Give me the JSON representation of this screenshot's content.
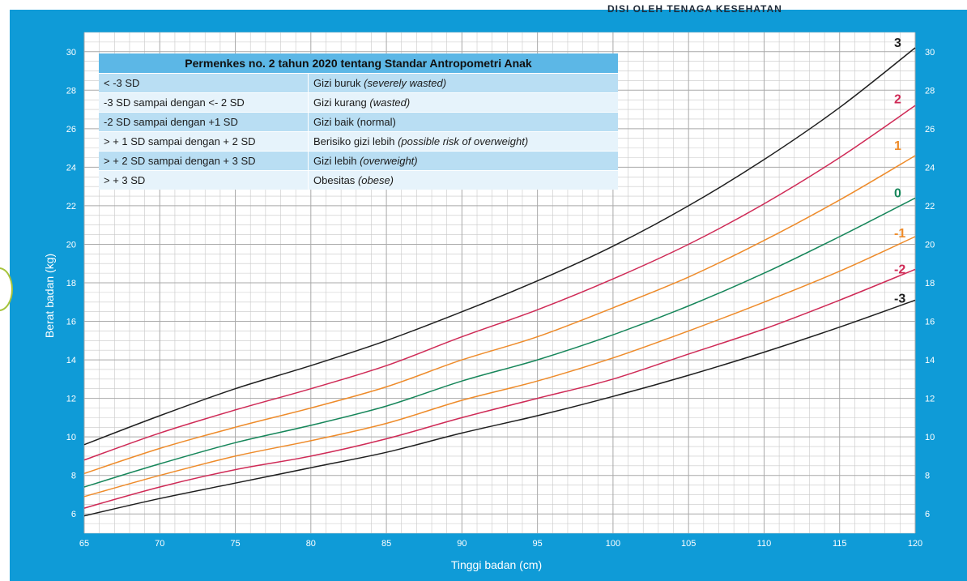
{
  "header_text": "DISI OLEH TENAGA KESEHATAN",
  "colors": {
    "frame": "#0f9bd7",
    "plot_bg": "#ffffff",
    "grid": "#c8c8c8",
    "sd3": "#1e1e1e",
    "sd2": "#cf2a56",
    "sd1": "#ee8b2a",
    "sd0": "#16865a",
    "table_header": "#5cb7e6",
    "table_row_dark": "#b9def3",
    "table_row_light": "#e6f3fb"
  },
  "legend_table": {
    "title": "Permenkes no. 2 tahun 2020 tentang Standar Antropometri Anak",
    "rows": [
      {
        "range": "< -3 SD",
        "status": "Gizi buruk",
        "status_en": "(severely wasted)"
      },
      {
        "range": "-3 SD sampai dengan <- 2 SD",
        "status": "Gizi kurang",
        "status_en": "(wasted)"
      },
      {
        "range": "-2 SD sampai dengan +1 SD",
        "status": "Gizi baik (normal)",
        "status_en": ""
      },
      {
        "range": "> + 1 SD sampai dengan + 2 SD",
        "status": "Berisiko gizi lebih",
        "status_en": "(possible risk of overweight)"
      },
      {
        "range": "> + 2 SD sampai dengan + 3 SD",
        "status": "Gizi lebih",
        "status_en": "(overweight)"
      },
      {
        "range": "> + 3 SD",
        "status": "Obesitas",
        "status_en": "(obese)"
      }
    ]
  },
  "chart_data": {
    "type": "line",
    "xlabel": "Tinggi badan (cm)",
    "ylabel": "Berat badan (kg)",
    "xlim": [
      65,
      120
    ],
    "ylim": [
      5,
      31
    ],
    "x_ticks": [
      "65",
      "70",
      "75",
      "80",
      "85",
      "90",
      "95",
      "100",
      "105",
      "110",
      "115",
      "120"
    ],
    "y_ticks": [
      "6",
      "8",
      "10",
      "12",
      "14",
      "16",
      "18",
      "20",
      "22",
      "24",
      "26",
      "28",
      "30"
    ],
    "grid": true,
    "x": [
      65,
      70,
      75,
      80,
      85,
      90,
      95,
      100,
      105,
      110,
      115,
      120
    ],
    "series": [
      {
        "name": "3",
        "color_key": "sd3",
        "values": [
          9.6,
          11.1,
          12.5,
          13.7,
          15.0,
          16.5,
          18.1,
          19.9,
          22.0,
          24.4,
          27.1,
          30.2
        ]
      },
      {
        "name": "2",
        "color_key": "sd2",
        "values": [
          8.8,
          10.2,
          11.4,
          12.5,
          13.7,
          15.2,
          16.6,
          18.2,
          20.0,
          22.1,
          24.5,
          27.2
        ]
      },
      {
        "name": "1",
        "color_key": "sd1",
        "values": [
          8.1,
          9.4,
          10.5,
          11.5,
          12.6,
          14.0,
          15.2,
          16.7,
          18.3,
          20.2,
          22.3,
          24.6
        ]
      },
      {
        "name": "0",
        "color_key": "sd0",
        "values": [
          7.4,
          8.6,
          9.7,
          10.6,
          11.6,
          12.9,
          14.0,
          15.3,
          16.8,
          18.5,
          20.4,
          22.4
        ]
      },
      {
        "name": "-1",
        "color_key": "sd1",
        "values": [
          6.9,
          8.0,
          9.0,
          9.8,
          10.7,
          11.9,
          12.9,
          14.1,
          15.5,
          17.0,
          18.6,
          20.4
        ]
      },
      {
        "name": "-2",
        "color_key": "sd2",
        "values": [
          6.3,
          7.4,
          8.3,
          9.0,
          9.9,
          11.0,
          12.0,
          13.0,
          14.3,
          15.6,
          17.1,
          18.7
        ]
      },
      {
        "name": "-3",
        "color_key": "sd3",
        "values": [
          5.9,
          6.8,
          7.6,
          8.4,
          9.2,
          10.2,
          11.1,
          12.1,
          13.2,
          14.4,
          15.7,
          17.1
        ]
      }
    ]
  }
}
